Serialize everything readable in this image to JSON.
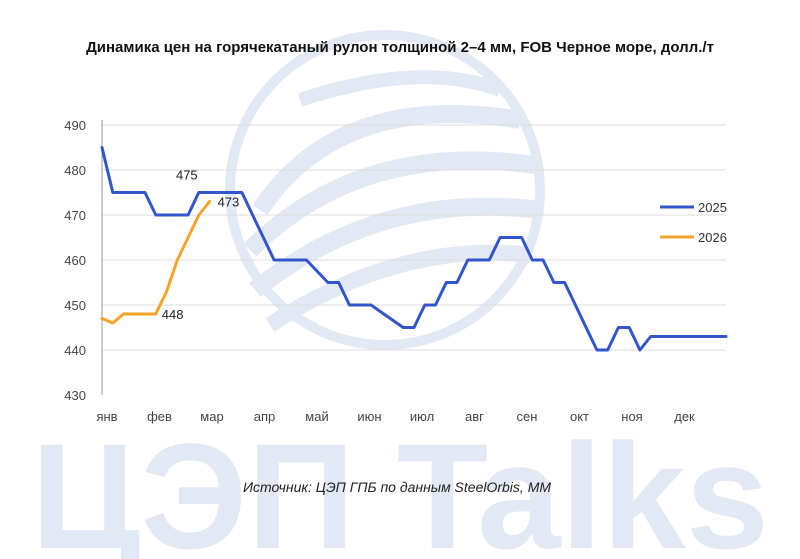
{
  "watermark": {
    "text": "ЦЭП Talks",
    "color": "#e3e8f5",
    "logo": "globe-logo"
  },
  "source": "Источник: ЦЭП ГПБ по данным SteelOrbis, MM",
  "chart_data": {
    "type": "line",
    "title": "Динамика цен на горячекатаный рулон толщиной 2–4 мм, FOB Черное море, долл./т",
    "xlabel": "",
    "ylabel": "",
    "ylim": [
      430,
      490
    ],
    "yticks": [
      430,
      440,
      450,
      460,
      470,
      480,
      490
    ],
    "grid": true,
    "legend_position": "right",
    "months": [
      "янв",
      "фев",
      "мар",
      "апр",
      "май",
      "июн",
      "июл",
      "авг",
      "сен",
      "окт",
      "ноя",
      "дек"
    ],
    "series": [
      {
        "name": "2025",
        "color": "#3355cc",
        "x": [
          0,
          0.2,
          0.4,
          0.8,
          1.0,
          1.2,
          1.6,
          1.8,
          2.0,
          2.2,
          2.4,
          2.6,
          2.8,
          3.2,
          3.4,
          3.6,
          3.8,
          4.2,
          4.4,
          4.6,
          4.8,
          5.0,
          5.6,
          5.8,
          6.0,
          6.2,
          6.4,
          6.6,
          6.8,
          7.0,
          7.2,
          7.4,
          7.8,
          8.0,
          8.2,
          8.4,
          8.6,
          8.8,
          9.0,
          9.2,
          9.4,
          9.6,
          9.8,
          10.0,
          10.2,
          10.4,
          10.6,
          10.8,
          11.0,
          11.2,
          11.6
        ],
        "values": [
          485,
          475,
          475,
          475,
          470,
          470,
          470,
          475,
          475,
          475,
          475,
          475,
          470,
          460,
          460,
          460,
          460,
          455,
          455,
          450,
          450,
          450,
          445,
          445,
          450,
          450,
          455,
          455,
          460,
          460,
          460,
          465,
          465,
          460,
          460,
          455,
          455,
          450,
          445,
          440,
          440,
          445,
          445,
          440,
          443,
          443,
          443,
          443,
          443,
          443,
          443
        ]
      },
      {
        "name": "2026",
        "color": "#f5a32a",
        "x": [
          0,
          0.2,
          0.4,
          0.6,
          0.8,
          1.0,
          1.2,
          1.4,
          1.6,
          1.8,
          2.0
        ],
        "values": [
          447,
          446,
          448,
          448,
          448,
          448,
          453,
          460,
          465,
          470,
          473
        ]
      }
    ],
    "data_labels": [
      {
        "series": "2025",
        "x": 1.8,
        "value": 475,
        "text": "475"
      },
      {
        "series": "2026",
        "x": 2.0,
        "value": 473,
        "text": "473"
      },
      {
        "series": "2026",
        "x": 1.0,
        "value": 448,
        "text": "448"
      }
    ]
  }
}
